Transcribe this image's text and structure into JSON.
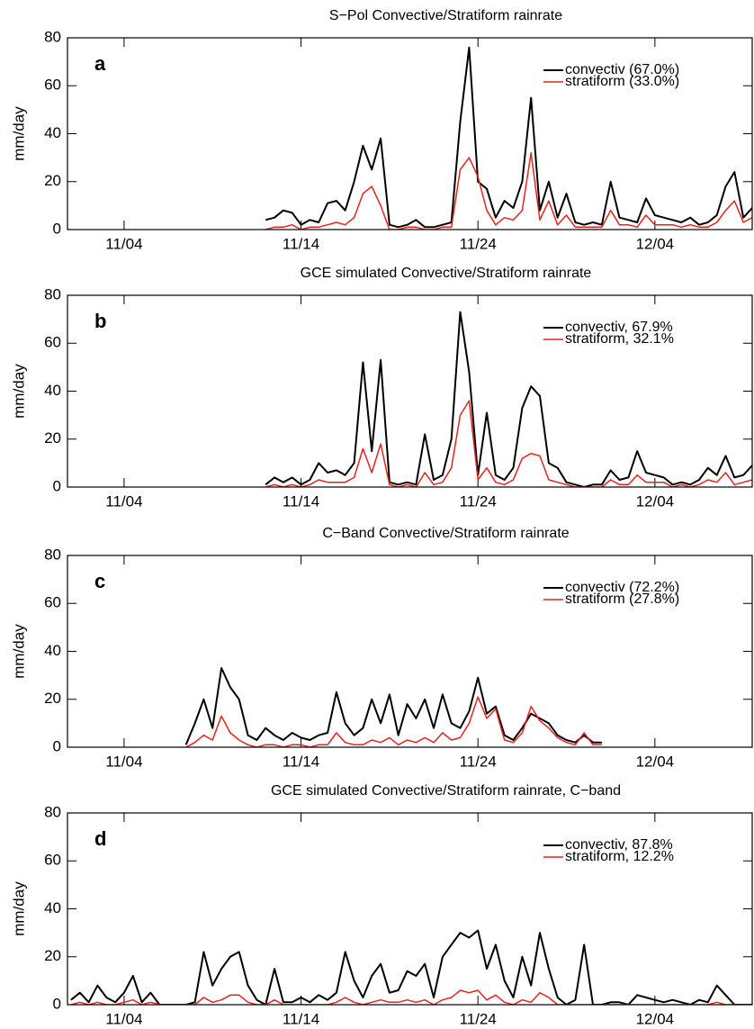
{
  "chart_data": [
    {
      "type": "line",
      "title": "S−Pol Convective/Stratiform rainrate",
      "panel_label": "a",
      "ylabel": "mm/day",
      "x": [
        12,
        12.5,
        13,
        13.5,
        14,
        14.5,
        15,
        15.5,
        16,
        16.5,
        17,
        17.5,
        18,
        18.5,
        19,
        19.5,
        20,
        20.5,
        21,
        21.5,
        22,
        22.5,
        23,
        23.5,
        24,
        24.5,
        25,
        25.5,
        26,
        26.5,
        27,
        27.5,
        28,
        28.5,
        29,
        29.5,
        30,
        30.5,
        31,
        31.5,
        32,
        32.5,
        33,
        33.5,
        34,
        34.5,
        35,
        35.5,
        36,
        36.5,
        37,
        37.5,
        38,
        38.5,
        39,
        39.5
      ],
      "series": [
        {
          "name": "convectiv (67.0%)",
          "color": "#000000",
          "values": [
            4,
            5,
            8,
            7,
            2,
            4,
            3,
            11,
            12,
            8,
            20,
            35,
            25,
            38,
            2,
            1,
            2,
            4,
            1,
            1,
            2,
            3,
            45,
            76,
            20,
            17,
            5,
            12,
            9,
            20,
            55,
            8,
            20,
            5,
            15,
            3,
            2,
            3,
            2,
            20,
            5,
            4,
            3,
            13,
            6,
            5,
            4,
            3,
            5,
            2,
            3,
            6,
            18,
            24,
            5,
            9
          ]
        },
        {
          "name": "stratiform (33.0%)",
          "color": "#e8221a",
          "values": [
            0,
            1,
            1,
            2,
            0,
            1,
            1,
            2,
            3,
            2,
            5,
            15,
            18,
            10,
            0,
            0,
            1,
            1,
            0,
            0,
            1,
            1,
            25,
            30,
            22,
            8,
            2,
            5,
            4,
            8,
            32,
            4,
            12,
            2,
            6,
            1,
            1,
            1,
            1,
            8,
            2,
            2,
            1,
            6,
            2,
            2,
            2,
            1,
            2,
            1,
            1,
            3,
            8,
            12,
            3,
            5
          ]
        }
      ],
      "xlim": [
        0.8,
        39.5
      ],
      "ylim": [
        0,
        80
      ],
      "xticks": [
        {
          "value": 4,
          "label": "11/04"
        },
        {
          "value": 14,
          "label": "11/14"
        },
        {
          "value": 24,
          "label": "11/24"
        },
        {
          "value": 34,
          "label": "12/04"
        }
      ],
      "yticks": [
        0,
        20,
        40,
        60,
        80
      ]
    },
    {
      "type": "line",
      "title": "GCE simulated Convective/Stratiform rainrate",
      "panel_label": "b",
      "ylabel": "mm/day",
      "x": [
        12,
        12.5,
        13,
        13.5,
        14,
        14.5,
        15,
        15.5,
        16,
        16.5,
        17,
        17.5,
        18,
        18.5,
        19,
        19.5,
        20,
        20.5,
        21,
        21.5,
        22,
        22.5,
        23,
        23.5,
        24,
        24.5,
        25,
        25.5,
        26,
        26.5,
        27,
        27.5,
        28,
        28.5,
        29,
        29.5,
        30,
        30.5,
        31,
        31.5,
        32,
        32.5,
        33,
        33.5,
        34,
        34.5,
        35,
        35.5,
        36,
        36.5,
        37,
        37.5,
        38,
        38.5,
        39,
        39.5
      ],
      "series": [
        {
          "name": "convectiv, 67.9%",
          "color": "#000000",
          "values": [
            1,
            4,
            2,
            4,
            1,
            3,
            10,
            6,
            7,
            5,
            10,
            52,
            15,
            53,
            2,
            1,
            2,
            1,
            22,
            3,
            5,
            20,
            73,
            48,
            5,
            31,
            5,
            3,
            8,
            33,
            42,
            38,
            10,
            8,
            2,
            1,
            0,
            1,
            1,
            7,
            3,
            4,
            15,
            6,
            5,
            4,
            1,
            2,
            1,
            3,
            8,
            5,
            13,
            4,
            5,
            9
          ]
        },
        {
          "name": "stratiform, 32.1%",
          "color": "#e8221a",
          "values": [
            0,
            1,
            0,
            1,
            0,
            1,
            3,
            2,
            2,
            2,
            4,
            16,
            6,
            18,
            1,
            0,
            1,
            0,
            6,
            1,
            2,
            8,
            30,
            36,
            3,
            8,
            2,
            1,
            3,
            12,
            14,
            13,
            3,
            2,
            1,
            0,
            0,
            0,
            0,
            3,
            1,
            1,
            5,
            2,
            2,
            2,
            0,
            1,
            0,
            1,
            3,
            2,
            6,
            1,
            2,
            3
          ]
        }
      ],
      "xlim": [
        0.8,
        39.5
      ],
      "ylim": [
        0,
        80
      ],
      "xticks": [
        {
          "value": 4,
          "label": "11/04"
        },
        {
          "value": 14,
          "label": "11/14"
        },
        {
          "value": 24,
          "label": "11/24"
        },
        {
          "value": 34,
          "label": "12/04"
        }
      ],
      "yticks": [
        0,
        20,
        40,
        60,
        80
      ]
    },
    {
      "type": "line",
      "title": "C−Band Convective/Stratiform rainrate",
      "panel_label": "c",
      "ylabel": "mm/day",
      "x": [
        7.5,
        8,
        8.5,
        9,
        9.5,
        10,
        10.5,
        11,
        11.5,
        12,
        12.5,
        13,
        13.5,
        14,
        14.5,
        15,
        15.5,
        16,
        16.5,
        17,
        17.5,
        18,
        18.5,
        19,
        19.5,
        20,
        20.5,
        21,
        21.5,
        22,
        22.5,
        23,
        23.5,
        24,
        24.5,
        25,
        25.5,
        26,
        26.5,
        27,
        27.5,
        28,
        28.5,
        29,
        29.5,
        30,
        30.5,
        31
      ],
      "series": [
        {
          "name": "convectiv (72.2%)",
          "color": "#000000",
          "values": [
            1,
            10,
            20,
            8,
            33,
            25,
            20,
            5,
            3,
            8,
            5,
            3,
            6,
            4,
            3,
            5,
            6,
            23,
            10,
            5,
            8,
            20,
            10,
            22,
            5,
            18,
            12,
            20,
            8,
            22,
            10,
            8,
            15,
            29,
            14,
            17,
            5,
            3,
            8,
            14,
            12,
            10,
            5,
            3,
            2,
            5,
            2,
            2
          ]
        },
        {
          "name": "stratiform (27.8%)",
          "color": "#e8221a",
          "values": [
            0,
            2,
            5,
            3,
            13,
            6,
            3,
            1,
            0,
            1,
            1,
            0,
            1,
            1,
            0,
            1,
            1,
            6,
            2,
            1,
            1,
            3,
            2,
            4,
            1,
            3,
            2,
            4,
            2,
            6,
            3,
            4,
            10,
            21,
            12,
            16,
            3,
            2,
            6,
            17,
            11,
            8,
            4,
            2,
            1,
            6,
            1,
            1
          ]
        }
      ],
      "xlim": [
        0.8,
        39.5
      ],
      "ylim": [
        0,
        80
      ],
      "xticks": [
        {
          "value": 4,
          "label": "11/04"
        },
        {
          "value": 14,
          "label": "11/14"
        },
        {
          "value": 24,
          "label": "11/24"
        },
        {
          "value": 34,
          "label": "12/04"
        }
      ],
      "yticks": [
        0,
        20,
        40,
        60,
        80
      ]
    },
    {
      "type": "line",
      "title": "GCE simulated Convective/Stratiform rainrate, C−band",
      "panel_label": "d",
      "ylabel": "mm/day",
      "x": [
        1,
        1.5,
        2,
        2.5,
        3,
        3.5,
        4,
        4.5,
        5,
        5.5,
        6,
        6.5,
        7,
        7.5,
        8,
        8.5,
        9,
        9.5,
        10,
        10.5,
        11,
        11.5,
        12,
        12.5,
        13,
        13.5,
        14,
        14.5,
        15,
        15.5,
        16,
        16.5,
        17,
        17.5,
        18,
        18.5,
        19,
        19.5,
        20,
        20.5,
        21,
        21.5,
        22,
        22.5,
        23,
        23.5,
        24,
        24.5,
        25,
        25.5,
        26,
        26.5,
        27,
        27.5,
        28,
        28.5,
        29,
        29.5,
        30,
        30.5,
        31,
        31.5,
        32,
        32.5,
        33,
        33.5,
        34,
        34.5,
        35,
        35.5,
        36,
        36.5,
        37,
        37.5,
        38,
        38.5,
        39,
        39.5
      ],
      "series": [
        {
          "name": "convectiv, 87.8%",
          "color": "#000000",
          "values": [
            2,
            5,
            1,
            8,
            3,
            1,
            5,
            12,
            1,
            5,
            0,
            0,
            0,
            0,
            1,
            22,
            8,
            15,
            20,
            22,
            8,
            2,
            0,
            15,
            1,
            1,
            3,
            1,
            4,
            2,
            5,
            22,
            10,
            3,
            12,
            17,
            5,
            6,
            14,
            12,
            17,
            3,
            20,
            25,
            30,
            28,
            31,
            15,
            25,
            10,
            3,
            20,
            8,
            30,
            15,
            3,
            0,
            2,
            25,
            0,
            0,
            1,
            1,
            0,
            4,
            3,
            2,
            1,
            2,
            1,
            0,
            2,
            1,
            8,
            4,
            0,
            0,
            0
          ]
        },
        {
          "name": "stratiform, 12.2%",
          "color": "#e8221a",
          "values": [
            0,
            1,
            0,
            1,
            0,
            0,
            1,
            2,
            0,
            1,
            0,
            0,
            0,
            0,
            0,
            3,
            1,
            2,
            4,
            4,
            1,
            0,
            0,
            2,
            0,
            0,
            0,
            0,
            0,
            0,
            1,
            3,
            1,
            0,
            1,
            2,
            1,
            1,
            2,
            1,
            2,
            0,
            2,
            3,
            6,
            5,
            6,
            2,
            4,
            1,
            0,
            2,
            1,
            5,
            3,
            0,
            0,
            0,
            0,
            0,
            0,
            0,
            0,
            0,
            0,
            0,
            0,
            0,
            0,
            0,
            0,
            0,
            0,
            1,
            0,
            0,
            0,
            0
          ]
        }
      ],
      "xlim": [
        0.8,
        39.5
      ],
      "ylim": [
        0,
        80
      ],
      "xticks": [
        {
          "value": 4,
          "label": "11/04"
        },
        {
          "value": 14,
          "label": "11/14"
        },
        {
          "value": 24,
          "label": "11/24"
        },
        {
          "value": 34,
          "label": "12/04"
        }
      ],
      "yticks": [
        0,
        20,
        40,
        60,
        80
      ]
    }
  ]
}
